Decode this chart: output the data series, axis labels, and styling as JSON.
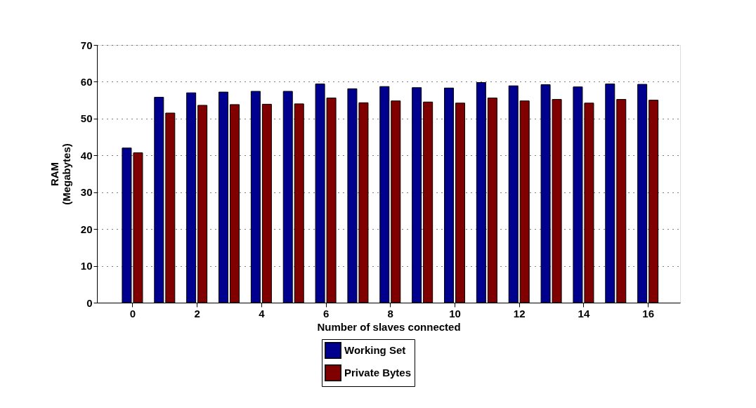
{
  "chart_data": {
    "type": "bar",
    "xlabel": "Number of slaves connected",
    "ylabel": "RAM\n(Megabytes)",
    "x": [
      0,
      1,
      2,
      3,
      4,
      5,
      6,
      7,
      8,
      9,
      10,
      11,
      12,
      13,
      14,
      15,
      16
    ],
    "series": [
      {
        "name": "Working Set",
        "color": "#00008f",
        "values": [
          42.0,
          55.8,
          57.0,
          57.2,
          57.4,
          57.4,
          59.4,
          58.1,
          58.7,
          58.4,
          58.3,
          59.8,
          58.9,
          59.2,
          58.6,
          59.4,
          59.3
        ]
      },
      {
        "name": "Private Bytes",
        "color": "#800000",
        "values": [
          40.7,
          51.5,
          53.6,
          53.8,
          53.9,
          54.0,
          55.6,
          54.3,
          54.8,
          54.5,
          54.2,
          55.6,
          54.8,
          55.2,
          54.2,
          55.2,
          55.0
        ]
      }
    ],
    "xlim": [
      -1.1,
      17
    ],
    "xticks": [
      0,
      2,
      4,
      6,
      8,
      10,
      12,
      14,
      16
    ],
    "ylim": [
      0,
      70
    ],
    "yticks": [
      0,
      10,
      20,
      30,
      40,
      50,
      60,
      70
    ],
    "grid": "y",
    "legend": "bottom"
  }
}
